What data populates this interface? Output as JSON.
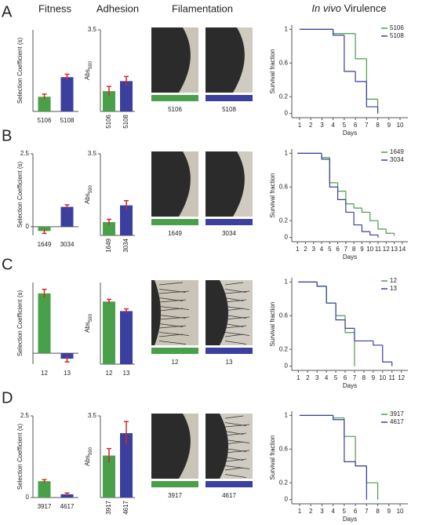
{
  "headers": {
    "fitness": "Fitness",
    "adhesion": "Adhesion",
    "filamentation": "Filamentation",
    "virulence_italic": "In vivo",
    "virulence": "Virulence"
  },
  "panel_labels": [
    "A",
    "B",
    "C",
    "D"
  ],
  "filamentation": [
    [
      "5106",
      "5108"
    ],
    [
      "1649",
      "3034"
    ],
    [
      "12",
      "13"
    ],
    [
      "3917",
      "4617"
    ]
  ],
  "chart_data": [
    {
      "type": "bar",
      "ylabel": "Selection Coefficient (s)",
      "categories": [
        "5106",
        "5108"
      ],
      "values": [
        0.45,
        1.05
      ],
      "errors": [
        0.08,
        0.09
      ],
      "colors": [
        "#4a9f4a",
        "#3b3f9e"
      ],
      "error_color": "#d62728",
      "ylim": [
        0,
        2.5
      ]
    },
    {
      "type": "bar",
      "ylabel": "Abs",
      "ylabel_subscript": "590",
      "categories": [
        "5106",
        "5108"
      ],
      "values": [
        0.87,
        1.3
      ],
      "errors": [
        0.2,
        0.2
      ],
      "colors": [
        "#4a9f4a",
        "#3b3f9e"
      ],
      "error_color": "#d62728",
      "ylim": [
        0,
        3.5
      ],
      "yticks": [
        3.5
      ],
      "xtick_rotation": -90
    },
    {
      "type": "line",
      "drawstyle": "steps-post",
      "xlabel": "Days",
      "ylabel": "Survival fraction",
      "xlim": [
        0.3,
        10.7
      ],
      "ylim": [
        -0.05,
        1.05
      ],
      "xticks": [
        1,
        2,
        3,
        4,
        5,
        6,
        7,
        8,
        9,
        10
      ],
      "yticks": [
        0,
        0.2,
        0.6,
        1
      ],
      "legend": "upper right",
      "series": [
        {
          "name": "5106",
          "color": "#4a9f4a",
          "x": [
            1,
            4,
            6,
            7,
            8
          ],
          "values": [
            1,
            0.95,
            0.65,
            0.17,
            0
          ]
        },
        {
          "name": "5108",
          "color": "#3b3f9e",
          "x": [
            1,
            4,
            5,
            6,
            7,
            8
          ],
          "values": [
            1,
            0.93,
            0.5,
            0.38,
            0.08,
            0
          ]
        }
      ]
    },
    {
      "type": "bar",
      "ylabel": "Selection Coefficient (s)",
      "categories": [
        "1649",
        "3034"
      ],
      "values": [
        -0.15,
        0.68
      ],
      "errors": [
        0.08,
        0.07
      ],
      "colors": [
        "#4a9f4a",
        "#3b3f9e"
      ],
      "error_color": "#d62728",
      "ylim": [
        -0.3,
        2.5
      ],
      "yticks": [
        0,
        2.5
      ]
    },
    {
      "type": "bar",
      "ylabel": "Abs",
      "ylabel_subscript": "590",
      "categories": [
        "1649",
        "3034"
      ],
      "values": [
        0.57,
        1.29
      ],
      "errors": [
        0.12,
        0.2
      ],
      "colors": [
        "#4a9f4a",
        "#3b3f9e"
      ],
      "error_color": "#d62728",
      "ylim": [
        0,
        3.5
      ],
      "yticks": [
        3.5
      ],
      "xtick_rotation": -90
    },
    {
      "type": "line",
      "drawstyle": "steps-post",
      "xlabel": "Days",
      "ylabel": "Survival fraction",
      "xlim": [
        0.3,
        14.7
      ],
      "ylim": [
        -0.05,
        1.05
      ],
      "xticks": [
        1,
        2,
        3,
        4,
        5,
        6,
        7,
        8,
        9,
        10,
        11,
        12,
        13,
        14
      ],
      "yticks": [
        0,
        0.2,
        0.6,
        1
      ],
      "legend": "upper right",
      "series": [
        {
          "name": "1649",
          "color": "#4a9f4a",
          "x": [
            1,
            4,
            5,
            6,
            7,
            8,
            9,
            10,
            11,
            12,
            13
          ],
          "values": [
            1,
            0.95,
            0.65,
            0.55,
            0.4,
            0.35,
            0.3,
            0.2,
            0.1,
            0.05,
            0.02
          ]
        },
        {
          "name": "3034",
          "color": "#3b3f9e",
          "x": [
            1,
            4,
            5,
            6,
            7,
            8,
            9,
            10,
            11
          ],
          "values": [
            1,
            0.93,
            0.6,
            0.45,
            0.3,
            0.15,
            0.07,
            0.03,
            0
          ]
        }
      ]
    },
    {
      "type": "bar",
      "ylabel": "Selection Coefficient (s)",
      "categories": [
        "12",
        "13"
      ],
      "values": [
        2.2,
        -0.2
      ],
      "errors": [
        0.15,
        0.12
      ],
      "colors": [
        "#4a9f4a",
        "#3b3f9e"
      ],
      "error_color": "#d62728",
      "ylim": [
        -0.4,
        2.6
      ]
    },
    {
      "type": "bar",
      "ylabel": "Abs",
      "ylabel_subscript": "590",
      "categories": [
        "12",
        "13"
      ],
      "values": [
        2.3,
        1.95
      ],
      "errors": [
        0.08,
        0.08
      ],
      "colors": [
        "#4a9f4a",
        "#3b3f9e"
      ],
      "error_color": "#d62728",
      "ylim": [
        0,
        3
      ]
    },
    {
      "type": "line",
      "drawstyle": "steps-post",
      "xlabel": "Days",
      "ylabel": "Survival fraction",
      "xlim": [
        0.3,
        12.7
      ],
      "ylim": [
        -0.05,
        1.05
      ],
      "xticks": [
        1,
        2,
        3,
        4,
        5,
        6,
        7,
        8,
        9,
        10,
        11,
        12
      ],
      "yticks": [
        0,
        0.2,
        0.6,
        1
      ],
      "legend": "upper right",
      "series": [
        {
          "name": "12",
          "color": "#4a9f4a",
          "x": [
            1,
            3,
            4,
            5,
            6,
            7
          ],
          "values": [
            1,
            0.95,
            0.75,
            0.6,
            0.4,
            0
          ]
        },
        {
          "name": "13",
          "color": "#3b3f9e",
          "x": [
            1,
            3,
            4,
            5,
            6,
            7,
            9,
            10,
            11
          ],
          "values": [
            1,
            0.95,
            0.75,
            0.55,
            0.45,
            0.3,
            0.25,
            0.05,
            0
          ]
        }
      ]
    },
    {
      "type": "bar",
      "ylabel": "Selection Coefficient (s)",
      "categories": [
        "3917",
        "4617"
      ],
      "values": [
        0.5,
        0.1
      ],
      "errors": [
        0.05,
        0.04
      ],
      "colors": [
        "#4a9f4a",
        "#3b3f9e"
      ],
      "error_color": "#d62728",
      "ylim": [
        0,
        2.5
      ],
      "yticks": [
        0,
        2.5
      ]
    },
    {
      "type": "bar",
      "ylabel": "Abs",
      "ylabel_subscript": "590",
      "categories": [
        "3917",
        "4617"
      ],
      "values": [
        1.8,
        2.76
      ],
      "errors": [
        0.3,
        0.5
      ],
      "colors": [
        "#4a9f4a",
        "#3b3f9e"
      ],
      "error_color": "#d62728",
      "ylim": [
        0,
        3.5
      ],
      "yticks": [
        3.5
      ],
      "xtick_rotation": -90
    },
    {
      "type": "line",
      "drawstyle": "steps-post",
      "xlabel": "Days",
      "ylabel": "Survival fraction",
      "xlim": [
        0.3,
        10.7
      ],
      "ylim": [
        -0.05,
        1.05
      ],
      "xticks": [
        1,
        2,
        3,
        4,
        5,
        6,
        7,
        8,
        9,
        10
      ],
      "yticks": [
        0,
        0.2,
        0.6,
        1
      ],
      "legend": "upper right",
      "series": [
        {
          "name": "3917",
          "color": "#4a9f4a",
          "x": [
            1,
            4,
            5,
            6,
            7,
            8
          ],
          "values": [
            1,
            0.97,
            0.75,
            0.4,
            0.2,
            0
          ]
        },
        {
          "name": "4617",
          "color": "#3b3f9e",
          "x": [
            1,
            4,
            5,
            6,
            7
          ],
          "values": [
            1,
            0.95,
            0.45,
            0.4,
            0
          ]
        }
      ]
    }
  ]
}
